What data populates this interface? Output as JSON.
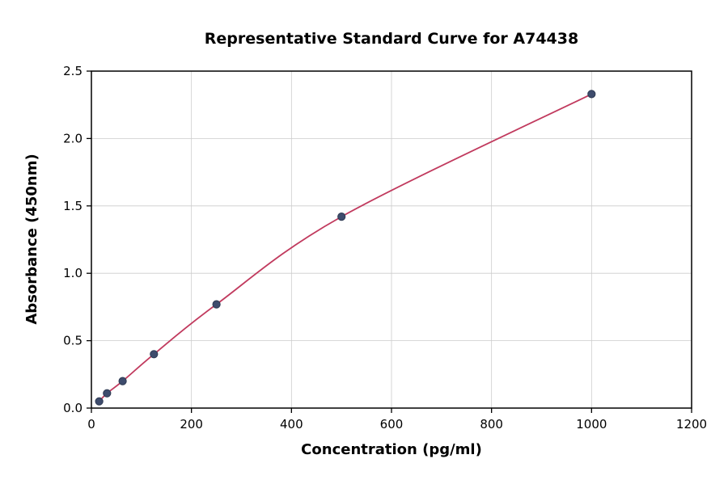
{
  "chart_data": {
    "type": "scatter",
    "title": "Representative Standard Curve for A74438",
    "xlabel": "Concentration (pg/ml)",
    "ylabel": "Absorbance (450nm)",
    "xlim": [
      0,
      1200
    ],
    "ylim": [
      0,
      2.5
    ],
    "x_ticks": [
      0,
      200,
      400,
      600,
      800,
      1000,
      1200
    ],
    "x_tick_labels": [
      "0",
      "200",
      "400",
      "600",
      "800",
      "1000",
      "1200"
    ],
    "y_ticks": [
      0,
      0.5,
      1.0,
      1.5,
      2.0,
      2.5
    ],
    "y_tick_labels": [
      "0.0",
      "0.5",
      "1.0",
      "1.5",
      "2.0",
      "2.5"
    ],
    "grid": true,
    "legend": "none",
    "points": [
      [
        15.6,
        0.05
      ],
      [
        31.2,
        0.11
      ],
      [
        62.5,
        0.2
      ],
      [
        125,
        0.4
      ],
      [
        250,
        0.77
      ],
      [
        500,
        1.42
      ],
      [
        1000,
        2.33
      ]
    ],
    "curve_color": "#c13a5e",
    "point_color": "#3e4c6d",
    "point_edge_color": "#2e3a52",
    "grid_color": "#cccccc",
    "axis_color": "#000000"
  }
}
